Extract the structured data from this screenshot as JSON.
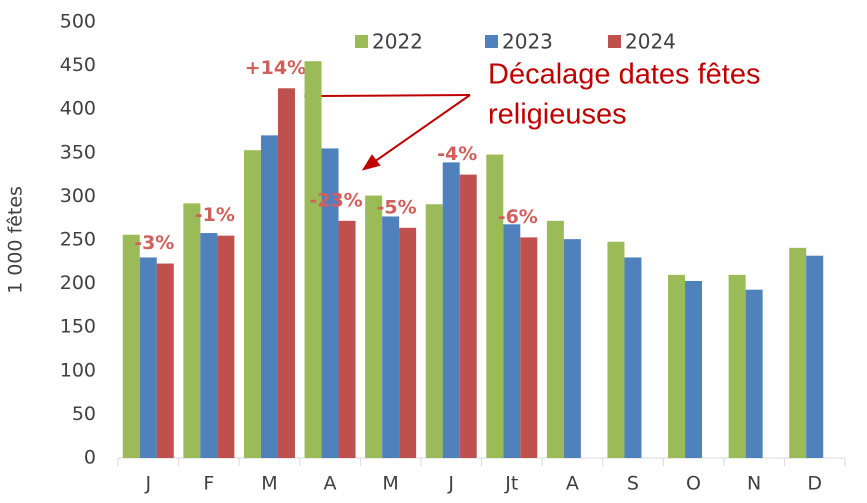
{
  "chart_data": {
    "type": "bar",
    "y_label": "1 000 fêtes",
    "categories": [
      "J",
      "F",
      "M",
      "A",
      "M",
      "J",
      "Jt",
      "A",
      "S",
      "O",
      "N",
      "D"
    ],
    "series": [
      {
        "name": "2022",
        "color": "#9bbb59",
        "values": [
          256,
          292,
          353,
          455,
          301,
          291,
          348,
          272,
          248,
          210,
          210,
          241
        ]
      },
      {
        "name": "2023",
        "color": "#4f81bd",
        "values": [
          230,
          258,
          370,
          355,
          277,
          339,
          268,
          251,
          230,
          203,
          193,
          232
        ]
      },
      {
        "name": "2024",
        "color": "#c0504d",
        "values": [
          223,
          255,
          424,
          272,
          264,
          325,
          253,
          null,
          null,
          null,
          null,
          null
        ]
      }
    ],
    "change_labels": [
      "-3%",
      "-1%",
      "+14%",
      "-23%",
      "-5%",
      "-4%",
      "-6%",
      null,
      null,
      null,
      null,
      null
    ],
    "annotation": [
      "Décalage dates fêtes",
      "religieuses"
    ],
    "ylim": [
      0,
      500
    ],
    "yticks": [
      0,
      50,
      100,
      150,
      200,
      250,
      300,
      350,
      400,
      450,
      500
    ],
    "grid": false
  }
}
